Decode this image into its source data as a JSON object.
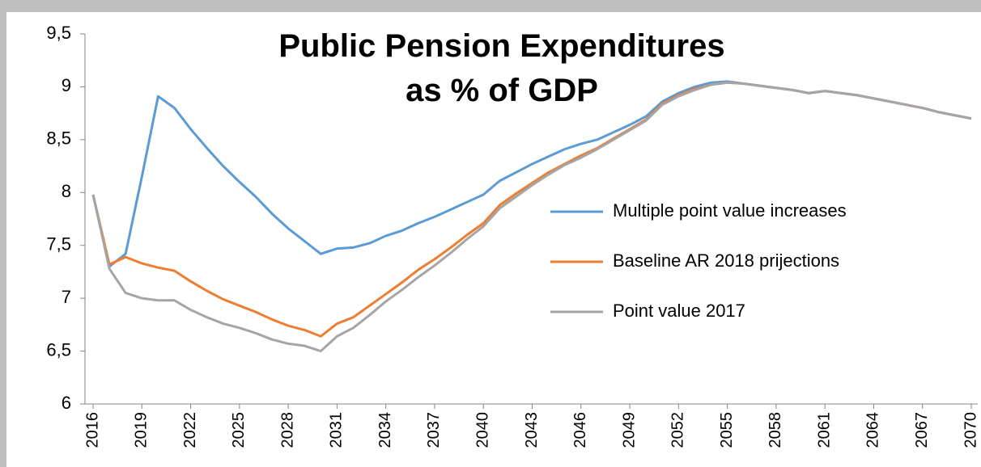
{
  "chart_data": {
    "type": "line",
    "title": "Public Pension Expenditures as % of GDP",
    "x": [
      2016,
      2017,
      2018,
      2019,
      2020,
      2021,
      2022,
      2023,
      2024,
      2025,
      2026,
      2027,
      2028,
      2029,
      2030,
      2031,
      2032,
      2033,
      2034,
      2035,
      2036,
      2037,
      2038,
      2039,
      2040,
      2041,
      2042,
      2043,
      2044,
      2045,
      2046,
      2047,
      2048,
      2049,
      2050,
      2051,
      2052,
      2053,
      2054,
      2055,
      2056,
      2057,
      2058,
      2059,
      2060,
      2061,
      2062,
      2063,
      2064,
      2065,
      2066,
      2067,
      2068,
      2069,
      2070
    ],
    "xlim": [
      2016,
      2070
    ],
    "xticks": [
      2016,
      2019,
      2022,
      2025,
      2028,
      2031,
      2034,
      2037,
      2040,
      2043,
      2046,
      2049,
      2052,
      2055,
      2058,
      2061,
      2064,
      2067,
      2070
    ],
    "ylim": [
      6,
      9.5
    ],
    "yticks": [
      6,
      {
        "value": 6.5,
        "label": "6,5"
      },
      7,
      {
        "value": 7.5,
        "label": "7,5"
      },
      8,
      {
        "value": 8.5,
        "label": "8,5"
      },
      9,
      {
        "value": 9.5,
        "label": "9,5"
      }
    ],
    "grid": false,
    "series": [
      {
        "name": "Multiple point value increases",
        "color": "#5b9bd5",
        "values": [
          7.98,
          7.3,
          7.42,
          8.15,
          8.91,
          8.8,
          8.6,
          8.42,
          8.25,
          8.1,
          7.96,
          7.8,
          7.66,
          7.54,
          7.42,
          7.47,
          7.48,
          7.52,
          7.59,
          7.64,
          7.71,
          7.77,
          7.84,
          7.91,
          7.98,
          8.11,
          8.19,
          8.27,
          8.34,
          8.41,
          8.46,
          8.5,
          8.57,
          8.64,
          8.72,
          8.86,
          8.94,
          9.0,
          9.04,
          9.05,
          9.03,
          9.01,
          8.99,
          8.97,
          8.94,
          8.96,
          8.94,
          8.92,
          8.89,
          8.86,
          8.83,
          8.8,
          8.76,
          8.73,
          8.7
        ]
      },
      {
        "name": "Baseline AR 2018 prijections",
        "color": "#ed7d31",
        "values": [
          7.98,
          7.32,
          7.39,
          7.33,
          7.29,
          7.26,
          7.16,
          7.07,
          6.99,
          6.93,
          6.87,
          6.8,
          6.74,
          6.7,
          6.64,
          6.76,
          6.82,
          6.93,
          7.04,
          7.15,
          7.27,
          7.37,
          7.48,
          7.6,
          7.71,
          7.88,
          7.99,
          8.09,
          8.19,
          8.27,
          8.35,
          8.42,
          8.51,
          8.6,
          8.69,
          8.84,
          8.92,
          8.98,
          9.02,
          9.04,
          9.03,
          9.01,
          8.99,
          8.97,
          8.94,
          8.96,
          8.94,
          8.92,
          8.89,
          8.86,
          8.83,
          8.8,
          8.76,
          8.73,
          8.7
        ]
      },
      {
        "name": "Point value 2017",
        "color": "#a5a5a5",
        "values": [
          7.98,
          7.28,
          7.05,
          7.0,
          6.98,
          6.98,
          6.89,
          6.82,
          6.76,
          6.72,
          6.67,
          6.61,
          6.57,
          6.55,
          6.5,
          6.64,
          6.72,
          6.84,
          6.97,
          7.08,
          7.2,
          7.31,
          7.43,
          7.56,
          7.68,
          7.85,
          7.96,
          8.07,
          8.17,
          8.26,
          8.33,
          8.41,
          8.5,
          8.59,
          8.68,
          8.83,
          8.91,
          8.97,
          9.02,
          9.04,
          9.03,
          9.01,
          8.99,
          8.97,
          8.94,
          8.96,
          8.94,
          8.92,
          8.89,
          8.86,
          8.83,
          8.8,
          8.76,
          8.73,
          8.7
        ]
      }
    ]
  }
}
